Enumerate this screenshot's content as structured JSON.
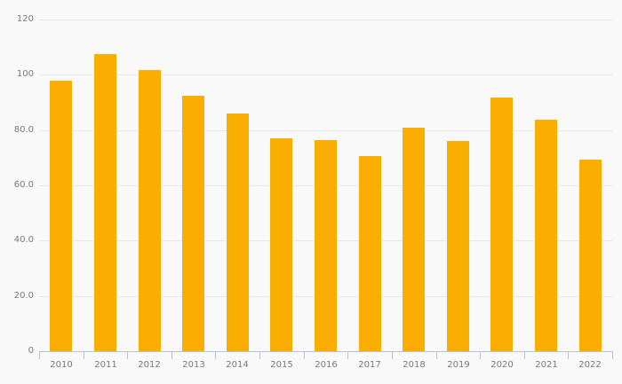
{
  "chart": {
    "background_color": "#f9f9f9",
    "bar_color": "#f9ae01",
    "grid_color": "#e7e7e7",
    "axis_color": "#b8c4d6",
    "label_color": "#787878"
  },
  "chart_data": {
    "type": "bar",
    "title": "",
    "xlabel": "",
    "ylabel": "",
    "categories": [
      "2010",
      "2011",
      "2012",
      "2013",
      "2014",
      "2015",
      "2016",
      "2017",
      "2018",
      "2019",
      "2020",
      "2021",
      "2022"
    ],
    "values": [
      98.0,
      107.4,
      101.6,
      92.3,
      86.1,
      77.0,
      76.3,
      70.6,
      81.0,
      76.0,
      91.8,
      83.8,
      69.3
    ],
    "ylim": [
      0,
      120
    ],
    "y_ticks": [
      {
        "value": 0,
        "label": "0"
      },
      {
        "value": 20,
        "label": "20.0"
      },
      {
        "value": 40,
        "label": "40.0"
      },
      {
        "value": 60,
        "label": "60.0"
      },
      {
        "value": 80,
        "label": "80.0"
      },
      {
        "value": 100,
        "label": "100"
      },
      {
        "value": 120,
        "label": "120"
      }
    ],
    "grid": true,
    "legend": false
  }
}
